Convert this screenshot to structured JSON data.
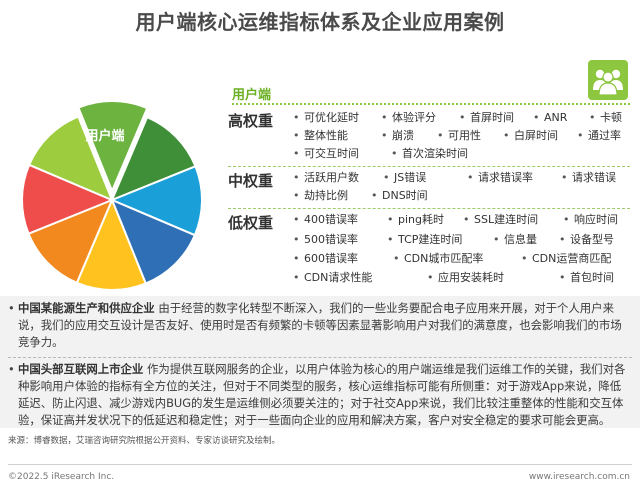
{
  "title": "用户端核心运维指标体系及企业应用案例",
  "pie": {
    "label": "用户端",
    "slice_colors": [
      "#6cb33f",
      "#3f8e38",
      "#1a9fd8",
      "#2e6fb6",
      "#ffc21f",
      "#f2891f",
      "#ef4c4c",
      "#9dcd3f"
    ]
  },
  "section_label": "用户端",
  "tiers": [
    {
      "label": "高权重",
      "items": [
        "可优化延时",
        "体验评分",
        "首屏时间",
        "ANR",
        "卡顿",
        "整体性能",
        "崩溃",
        "可用性",
        "白屏时间",
        "通过率",
        "可交互时间",
        "首次渲染时间"
      ]
    },
    {
      "label": "中权重",
      "items": [
        "活跃用户数",
        "JS错误",
        "请求错误率",
        "请求错误",
        "劫持比例",
        "DNS时间"
      ]
    },
    {
      "label": "低权重",
      "items": [
        "400错误率",
        "ping耗时",
        "SSL建连时间",
        "响应时间",
        "500错误率",
        "TCP建连时间",
        "信息量",
        "设备型号",
        "600错误率",
        "CDN城市匹配率",
        "CDN运营商匹配",
        "CDN请求性能",
        "应用安装耗时",
        "首包时间"
      ]
    }
  ],
  "cases": [
    {
      "title": "中国某能源生产和供应企业",
      "text": "由于经营的数字化转型不断深入，我们的一些业务要配合电子应用来开展，对于个人用户来说，我们的应用交互设计是否友好、使用时是否有频繁的卡顿等因素显著影响用户对我们的满意度，也会影响我们的市场竞争力。"
    },
    {
      "title": "中国头部互联网上市企业",
      "text": "作为提供互联网服务的企业，以用户体验为核心的用户端运维是我们运维工作的关键，我们对各种影响用户体验的指标有全方位的关注，但对于不同类型的服务，核心运维指标可能有所侧重：对于游戏App来说，降低延迟、防止闪退、减少游戏内BUG的发生是运维侧必须要关注的；对于社交App来说，我们比较注重整体的性能和交互体验，保证高并发状况下的低延迟和稳定性；对于一些面向企业的应用和解决方案，客户对安全稳定的要求可能会更高。"
    }
  ],
  "source": "来源：博睿数据，艾瑞咨询研究院根据公开资料、专家访谈研究及绘制。",
  "copyright": "©2022.5 iResearch Inc.",
  "website": "www.iresearch.com.cn"
}
